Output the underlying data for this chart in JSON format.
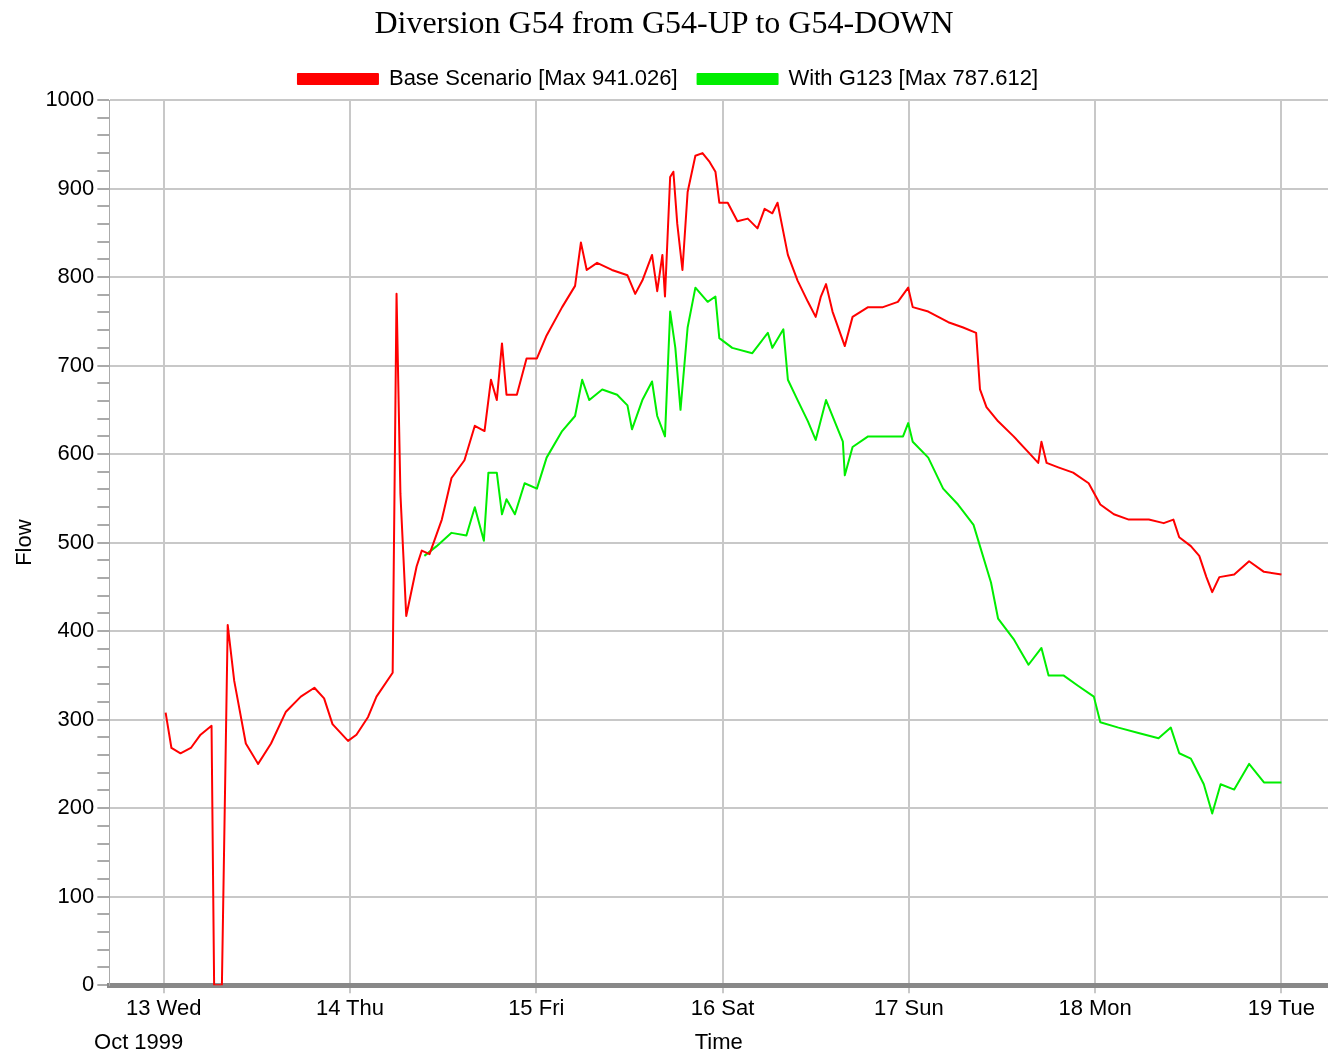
{
  "chart_data": {
    "type": "line",
    "title": "Diversion G54 from G54-UP to G54-DOWN",
    "xlabel": "Time",
    "ylabel": "Flow",
    "annotations": [
      "Oct 1999"
    ],
    "xlim": [
      "1999-10-12T17:00",
      "1999-10-19T06:00"
    ],
    "xticks": [
      {
        "value": "1999-10-13",
        "label": "13 Wed"
      },
      {
        "value": "1999-10-14",
        "label": "14 Thu"
      },
      {
        "value": "1999-10-15",
        "label": "15 Fri"
      },
      {
        "value": "1999-10-16",
        "label": "16 Sat"
      },
      {
        "value": "1999-10-17",
        "label": "17 Sun"
      },
      {
        "value": "1999-10-18",
        "label": "18 Mon"
      },
      {
        "value": "1999-10-19",
        "label": "19 Tue"
      }
    ],
    "ylim": [
      0,
      1000
    ],
    "yticks": [
      0,
      {
        "value": 20,
        "label": null
      },
      {
        "value": 40,
        "label": null
      },
      {
        "value": 60,
        "label": null
      },
      {
        "value": 80,
        "label": null
      },
      100,
      {
        "value": 120,
        "label": null
      },
      {
        "value": 140,
        "label": null
      },
      {
        "value": 160,
        "label": null
      },
      {
        "value": 180,
        "label": null
      },
      200,
      {
        "value": 220,
        "label": null
      },
      {
        "value": 240,
        "label": null
      },
      {
        "value": 260,
        "label": null
      },
      {
        "value": 280,
        "label": null
      },
      300,
      {
        "value": 320,
        "label": null
      },
      {
        "value": 340,
        "label": null
      },
      {
        "value": 360,
        "label": null
      },
      {
        "value": 380,
        "label": null
      },
      400,
      {
        "value": 420,
        "label": null
      },
      {
        "value": 440,
        "label": null
      },
      {
        "value": 460,
        "label": null
      },
      {
        "value": 480,
        "label": null
      },
      500,
      {
        "value": 520,
        "label": null
      },
      {
        "value": 540,
        "label": null
      },
      {
        "value": 560,
        "label": null
      },
      {
        "value": 580,
        "label": null
      },
      600,
      {
        "value": 620,
        "label": null
      },
      {
        "value": 640,
        "label": null
      },
      {
        "value": 660,
        "label": null
      },
      {
        "value": 680,
        "label": null
      },
      700,
      {
        "value": 720,
        "label": null
      },
      {
        "value": 740,
        "label": null
      },
      {
        "value": 760,
        "label": null
      },
      {
        "value": 780,
        "label": null
      },
      800,
      {
        "value": 820,
        "label": null
      },
      {
        "value": 840,
        "label": null
      },
      {
        "value": 860,
        "label": null
      },
      {
        "value": 880,
        "label": null
      },
      900,
      {
        "value": 920,
        "label": null
      },
      {
        "value": 940,
        "label": null
      },
      {
        "value": 960,
        "label": null
      },
      {
        "value": 980,
        "label": null
      },
      1000
    ],
    "grid": true,
    "legend": "top",
    "marker": "none",
    "line_style": "solid",
    "series": [
      {
        "name": "Base Scenario [Max 941.026]",
        "color": "#ff0000",
        "x": [
          "1999-10-13T00:15",
          "1999-10-13T01:00",
          "1999-10-13T02:10",
          "1999-10-13T03:30",
          "1999-10-13T04:45",
          "1999-10-13T06:10",
          "1999-10-13T06:30",
          "1999-10-13T07:30",
          "1999-10-13T08:15",
          "1999-10-13T09:05",
          "1999-10-13T10:35",
          "1999-10-13T12:10",
          "1999-10-13T13:50",
          "1999-10-13T15:45",
          "1999-10-13T17:40",
          "1999-10-13T19:25",
          "1999-10-13T20:40",
          "1999-10-13T21:45",
          "1999-10-13T23:45",
          "1999-10-14T00:50",
          "1999-10-14T02:20",
          "1999-10-14T03:25",
          "1999-10-14T05:30",
          "1999-10-14T06:00",
          "1999-10-14T06:30",
          "1999-10-14T07:15",
          "1999-10-14T08:35",
          "1999-10-14T09:15",
          "1999-10-14T10:15",
          "1999-10-14T11:50",
          "1999-10-14T13:05",
          "1999-10-14T14:45",
          "1999-10-14T16:05",
          "1999-10-14T17:20",
          "1999-10-14T18:10",
          "1999-10-14T18:55",
          "1999-10-14T19:35",
          "1999-10-14T20:10",
          "1999-10-14T21:30",
          "1999-10-14T22:45",
          "1999-10-15T00:05",
          "1999-10-15T01:20",
          "1999-10-15T03:20",
          "1999-10-15T05:00",
          "1999-10-15T05:45",
          "1999-10-15T06:30",
          "1999-10-15T07:50",
          "1999-10-15T09:45",
          "1999-10-15T11:45",
          "1999-10-15T12:45",
          "1999-10-15T13:40",
          "1999-10-15T14:55",
          "1999-10-15T15:35",
          "1999-10-15T16:15",
          "1999-10-15T16:35",
          "1999-10-15T17:15",
          "1999-10-15T17:40",
          "1999-10-15T18:10",
          "1999-10-15T18:50",
          "1999-10-15T19:30",
          "1999-10-15T20:30",
          "1999-10-15T21:25",
          "1999-10-15T22:20",
          "1999-10-15T23:05",
          "1999-10-15T23:35",
          "1999-10-16T00:40",
          "1999-10-16T01:55",
          "1999-10-16T03:15",
          "1999-10-16T04:30",
          "1999-10-16T05:25",
          "1999-10-16T06:25",
          "1999-10-16T07:05",
          "1999-10-16T08:25",
          "1999-10-16T09:40",
          "1999-10-16T11:00",
          "1999-10-16T12:00",
          "1999-10-16T12:40",
          "1999-10-16T13:20",
          "1999-10-16T14:10",
          "1999-10-16T15:45",
          "1999-10-16T16:45",
          "1999-10-16T18:45",
          "1999-10-16T20:40",
          "1999-10-16T22:35",
          "1999-10-16T23:55",
          "1999-10-17T00:30",
          "1999-10-17T02:30",
          "1999-10-17T05:05",
          "1999-10-17T07:00",
          "1999-10-17T08:40",
          "1999-10-17T09:10",
          "1999-10-17T10:00",
          "1999-10-17T11:30",
          "1999-10-17T13:30",
          "1999-10-17T15:25",
          "1999-10-17T16:40",
          "1999-10-17T17:05",
          "1999-10-17T17:45",
          "1999-10-17T19:15",
          "1999-10-17T21:10",
          "1999-10-17T23:10",
          "1999-10-18T00:40",
          "1999-10-18T02:25",
          "1999-10-18T04:20",
          "1999-10-18T06:55",
          "1999-10-18T08:50",
          "1999-10-18T10:05",
          "1999-10-18T10:50",
          "1999-10-18T12:20",
          "1999-10-18T13:25",
          "1999-10-18T14:20",
          "1999-10-18T15:05",
          "1999-10-18T16:00",
          "1999-10-18T17:55",
          "1999-10-18T19:50",
          "1999-10-18T21:45",
          "1999-10-19T00:00"
        ],
        "values": [
          308,
          268,
          262,
          268,
          283,
          293,
          0,
          0,
          407,
          344,
          273,
          250,
          273,
          309,
          326,
          336,
          324,
          295,
          276,
          283,
          303,
          326,
          353,
          781,
          555,
          417,
          473,
          491,
          487,
          526,
          573,
          593,
          632,
          626,
          684,
          661,
          725,
          667,
          667,
          708,
          708,
          734,
          766,
          790,
          839,
          808,
          816,
          808,
          802,
          781,
          796,
          825,
          784,
          825,
          778,
          913,
          919,
          860,
          808,
          896,
          937,
          940,
          930,
          919,
          884,
          884,
          863,
          866,
          855,
          877,
          872,
          884,
          825,
          796,
          772,
          755,
          778,
          792,
          761,
          722,
          755,
          766,
          766,
          772,
          788,
          766,
          761,
          749,
          743,
          737,
          673,
          653,
          637,
          620,
          602,
          590,
          614,
          590,
          585,
          579,
          567,
          543,
          532,
          526,
          526,
          522,
          526,
          506,
          496,
          485,
          461,
          444,
          461,
          464,
          479,
          467,
          464
        ]
      },
      {
        "name": "With G123 [Max 787.612]",
        "color": "#00ee00",
        "x": [
          "1999-10-14T09:35",
          "1999-10-14T11:10",
          "1999-10-14T13:05",
          "1999-10-14T15:00",
          "1999-10-14T16:05",
          "1999-10-14T17:15",
          "1999-10-14T17:50",
          "1999-10-14T18:55",
          "1999-10-14T19:35",
          "1999-10-14T20:10",
          "1999-10-14T21:15",
          "1999-10-14T22:30",
          "1999-10-15T00:05",
          "1999-10-15T01:20",
          "1999-10-15T03:20",
          "1999-10-15T05:00",
          "1999-10-15T05:55",
          "1999-10-15T06:50",
          "1999-10-15T08:30",
          "1999-10-15T10:25",
          "1999-10-15T11:45",
          "1999-10-15T12:20",
          "1999-10-15T13:40",
          "1999-10-15T14:55",
          "1999-10-15T15:35",
          "1999-10-15T16:35",
          "1999-10-15T17:15",
          "1999-10-15T17:55",
          "1999-10-15T18:35",
          "1999-10-15T19:30",
          "1999-10-15T20:30",
          "1999-10-15T22:05",
          "1999-10-15T23:05",
          "1999-10-15T23:35",
          "1999-10-16T01:15",
          "1999-10-16T03:50",
          "1999-10-16T05:50",
          "1999-10-16T06:25",
          "1999-10-16T07:50",
          "1999-10-16T08:25",
          "1999-10-16T09:40",
          "1999-10-16T11:00",
          "1999-10-16T12:00",
          "1999-10-16T13:20",
          "1999-10-16T15:30",
          "1999-10-16T15:45",
          "1999-10-16T16:45",
          "1999-10-16T18:45",
          "1999-10-16T21:20",
          "1999-10-16T23:15",
          "1999-10-16T23:55",
          "1999-10-17T00:30",
          "1999-10-17T02:30",
          "1999-10-17T04:25",
          "1999-10-17T06:20",
          "1999-10-17T08:20",
          "1999-10-17T10:35",
          "1999-10-17T11:30",
          "1999-10-17T13:30",
          "1999-10-17T15:25",
          "1999-10-17T17:05",
          "1999-10-17T18:00",
          "1999-10-17T19:55",
          "1999-10-17T21:50",
          "1999-10-17T23:50",
          "1999-10-18T00:40",
          "1999-10-18T03:00",
          "1999-10-18T05:35",
          "1999-10-18T08:10",
          "1999-10-18T09:45",
          "1999-10-18T10:50",
          "1999-10-18T12:20",
          "1999-10-18T14:00",
          "1999-10-18T15:05",
          "1999-10-18T16:10",
          "1999-10-18T17:55",
          "1999-10-18T19:50",
          "1999-10-18T21:45",
          "1999-10-19T00:00"
        ],
        "values": [
          485,
          496,
          511,
          508,
          540,
          502,
          579,
          579,
          532,
          549,
          532,
          567,
          561,
          596,
          626,
          643,
          684,
          661,
          673,
          667,
          655,
          628,
          661,
          682,
          643,
          620,
          761,
          720,
          650,
          743,
          788,
          772,
          778,
          731,
          720,
          714,
          737,
          720,
          741,
          684,
          661,
          637,
          616,
          661,
          614,
          576,
          608,
          620,
          620,
          620,
          635,
          614,
          596,
          561,
          543,
          520,
          455,
          414,
          391,
          362,
          381,
          350,
          350,
          338,
          326,
          297,
          291,
          285,
          279,
          291,
          262,
          256,
          227,
          194,
          227,
          221,
          250,
          229,
          229
        ]
      }
    ]
  }
}
